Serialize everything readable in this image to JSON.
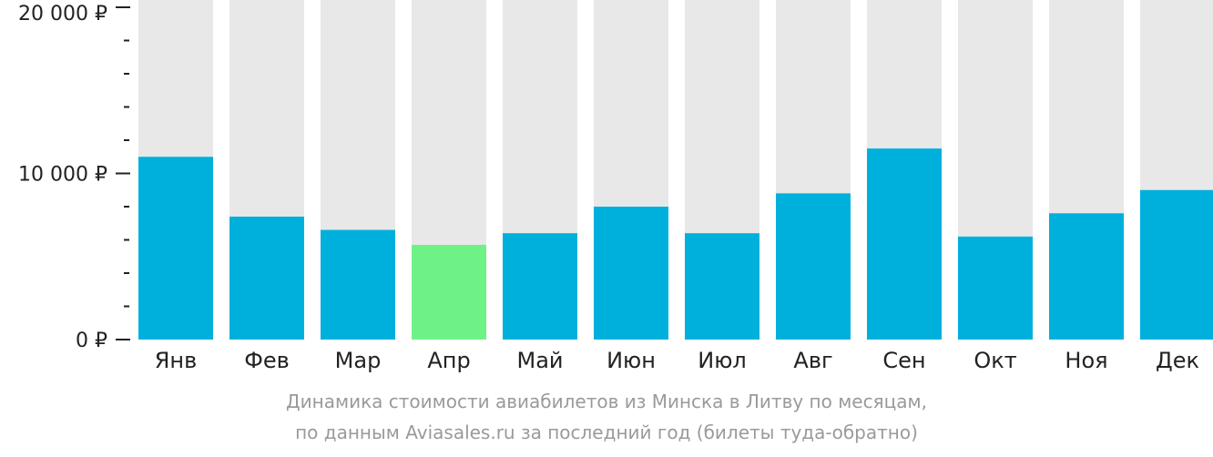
{
  "chart_data": {
    "type": "bar",
    "categories": [
      "Янв",
      "Фев",
      "Мар",
      "Апр",
      "Май",
      "Июн",
      "Июл",
      "Авг",
      "Сен",
      "Окт",
      "Ноя",
      "Дек"
    ],
    "values": [
      11000,
      7400,
      6600,
      5700,
      6400,
      8000,
      6400,
      8800,
      11500,
      6200,
      7600,
      9000
    ],
    "highlight_index": 3,
    "y_tick_labels": [
      "20 000 ₽",
      "10 000 ₽",
      "0 ₽"
    ],
    "y_tick_values": [
      20000,
      10000,
      0
    ],
    "ylim": [
      0,
      20000
    ],
    "minor_tick_step": 2000,
    "title": "",
    "xlabel": "",
    "ylabel": "",
    "grid": false,
    "legend": "none"
  },
  "caption": {
    "line1": "Динамика стоимости авиабилетов из Минска в Литву по месяцам,",
    "line2": "по данным Aviasales.ru за последний год (билеты туда-обратно)"
  },
  "colors": {
    "bar": "#00b0dc",
    "highlight": "#6ff285",
    "background_bar": "#e8e8e8",
    "axis": "#222222"
  }
}
